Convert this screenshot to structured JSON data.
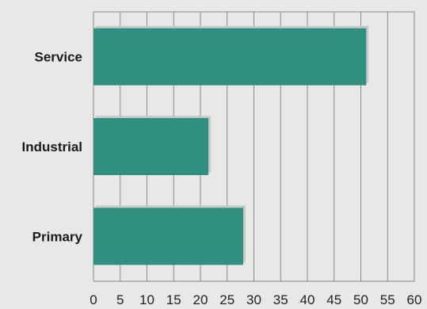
{
  "chart_data": {
    "type": "bar",
    "orientation": "horizontal",
    "categories": [
      "Service",
      "Industrial",
      "Primary"
    ],
    "values": [
      51,
      21.5,
      28
    ],
    "title": "",
    "xlabel": "",
    "ylabel": "",
    "xlim": [
      0,
      60
    ],
    "x_ticks": [
      0,
      5,
      10,
      15,
      20,
      25,
      30,
      35,
      40,
      45,
      50,
      55,
      60
    ],
    "grid": "vertical",
    "legend": "none",
    "bar_color": "#2f8f80",
    "shadow_color": "#c9c9c7",
    "grid_color": "#8a8a8a",
    "background_color": "#e8e8e6"
  }
}
